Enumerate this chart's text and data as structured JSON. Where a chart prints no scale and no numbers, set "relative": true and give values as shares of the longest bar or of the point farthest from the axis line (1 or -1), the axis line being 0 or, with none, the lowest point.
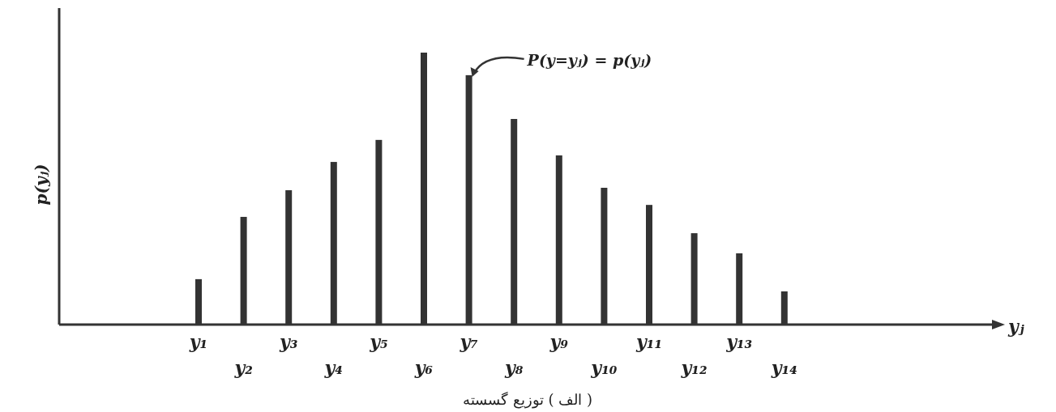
{
  "chart_data": {
    "type": "bar",
    "relative": true,
    "categories": [
      "y₁",
      "y₂",
      "y₃",
      "y₄",
      "y₅",
      "y₆",
      "y₇",
      "y₈",
      "y₉",
      "y₁₀",
      "y₁₁",
      "y₁₂",
      "y₁₃",
      "y₁₄"
    ],
    "series": [
      {
        "color": "#333333",
        "values": [
          0.167,
          0.396,
          0.494,
          0.598,
          0.679,
          1,
          0.917,
          0.756,
          0.622,
          0.503,
          0.44,
          0.336,
          0.262,
          0.122
        ]
      }
    ],
    "annotations": [
      {
        "text": "P(y=yⱼ) = p(yⱼ)",
        "x": "y₇",
        "y": 0.917
      },
      "( الف ) توزیع گسسته",
      "yⱼ",
      "p(yⱼ)"
    ]
  }
}
